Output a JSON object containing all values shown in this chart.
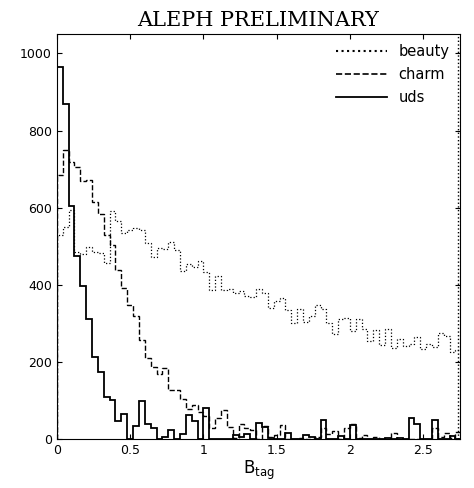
{
  "title": "ALEPH PRELIMINARY",
  "xlabel_text": "B",
  "xlabel_sub": "tag",
  "xlim": [
    0.0,
    2.75
  ],
  "ylim": [
    0,
    1050
  ],
  "yticks": [
    0,
    200,
    400,
    600,
    800,
    1000
  ],
  "xticks": [
    0.0,
    0.5,
    1.0,
    1.5,
    2.0,
    2.5
  ],
  "xticklabels": [
    "0",
    "0.5",
    "1",
    "1.5",
    "2",
    "2.5"
  ],
  "legend_labels": [
    "beauty",
    "charm",
    "uds"
  ],
  "bin_width": 0.04,
  "x_right_dotted": 2.76,
  "noise_scale_beauty": 18,
  "noise_scale_charm": 22,
  "noise_scale_uds": 28,
  "seed": 137
}
